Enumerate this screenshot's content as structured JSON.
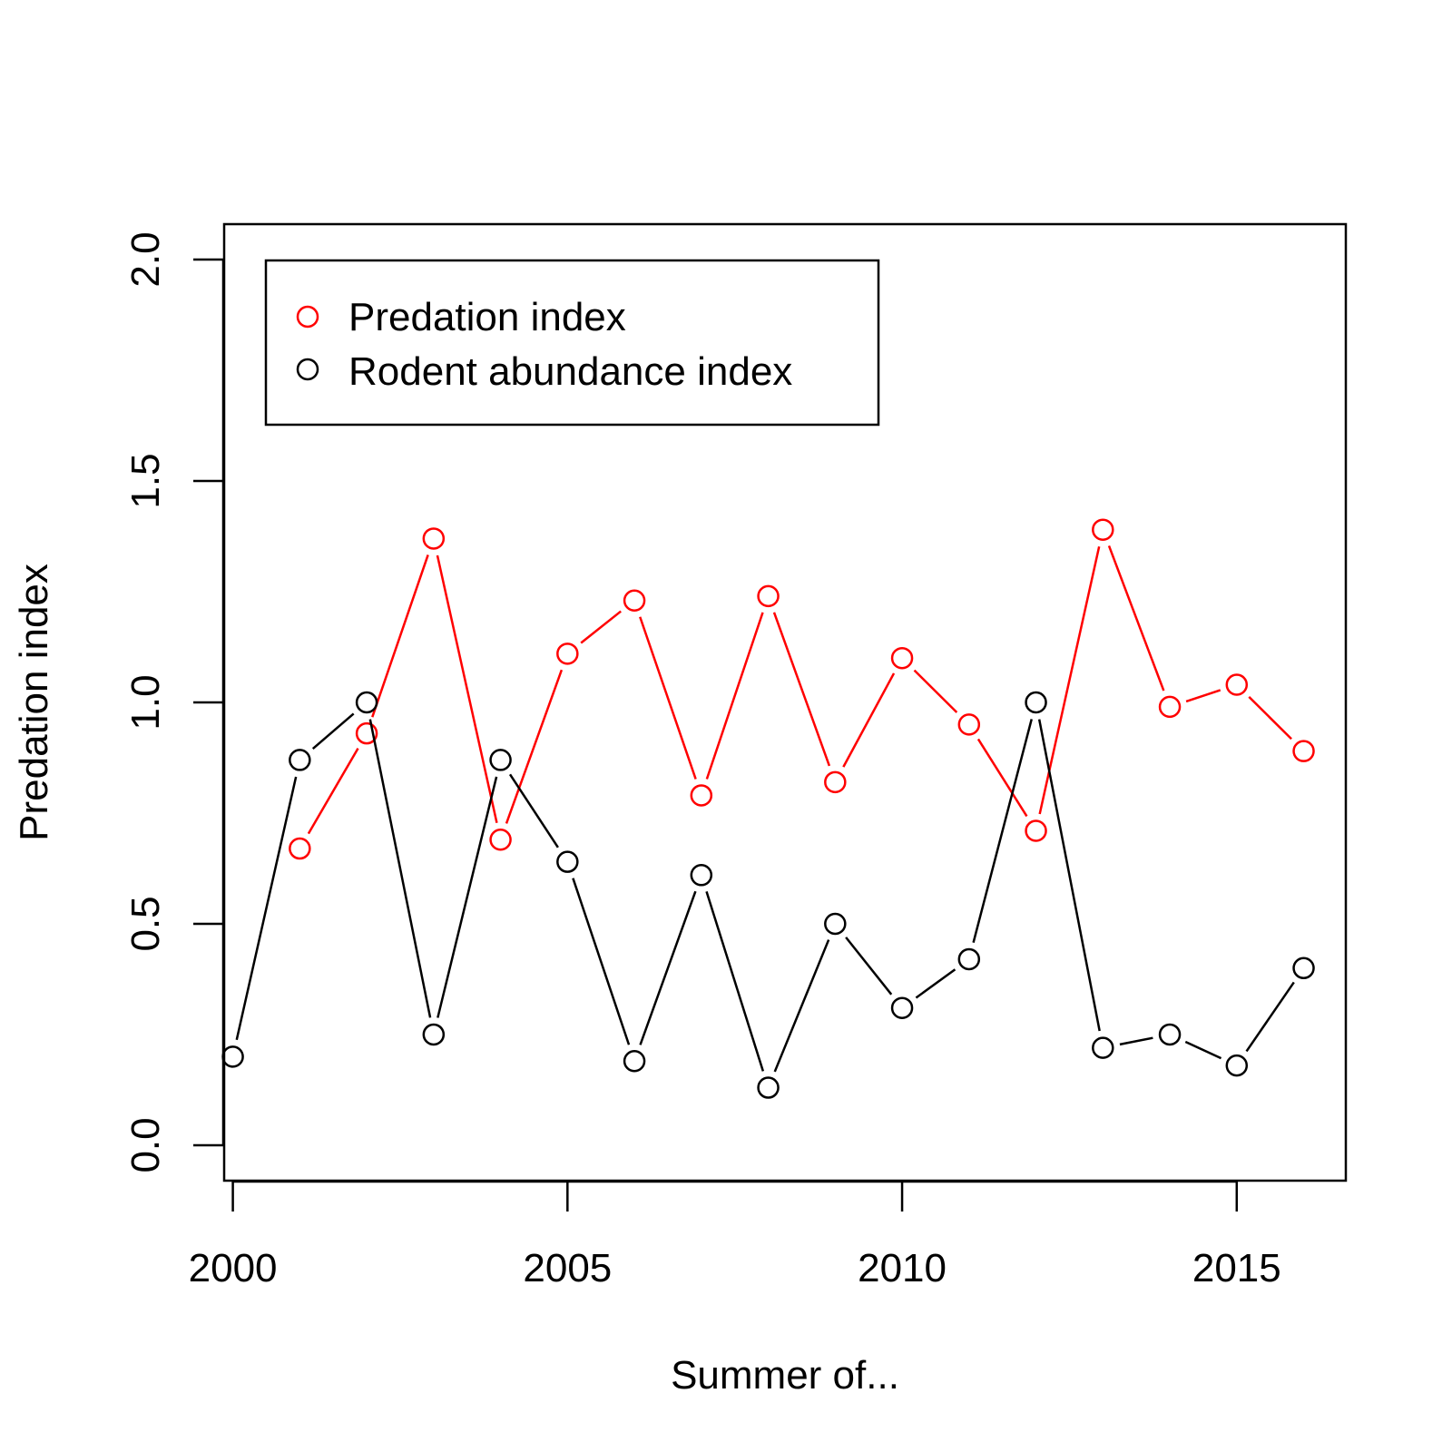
{
  "chart_data": {
    "type": "line",
    "title": "",
    "xlabel": "Summer of...",
    "ylabel": "Predation index",
    "x": [
      2000,
      2001,
      2002,
      2003,
      2004,
      2005,
      2006,
      2007,
      2008,
      2009,
      2010,
      2011,
      2012,
      2013,
      2014,
      2015,
      2016
    ],
    "xlim": [
      1999.87,
      2016.63
    ],
    "ylim": [
      -0.08,
      2.08
    ],
    "xticks": [
      2000,
      2005,
      2010,
      2015
    ],
    "xtick_labels": [
      "2000",
      "2005",
      "2010",
      "2015"
    ],
    "yticks": [
      0.0,
      0.5,
      1.0,
      1.5,
      2.0
    ],
    "ytick_labels": [
      "0.0",
      "0.5",
      "1.0",
      "1.5",
      "2.0"
    ],
    "grid": false,
    "legend_position": "top-left",
    "series": [
      {
        "name": "Predation index",
        "color": "#ff0000",
        "values": [
          null,
          0.67,
          0.93,
          1.37,
          0.69,
          1.11,
          1.23,
          0.79,
          1.24,
          0.82,
          1.1,
          0.95,
          0.71,
          1.39,
          0.99,
          1.04,
          0.89
        ]
      },
      {
        "name": "Rodent abundance index",
        "color": "#000000",
        "values": [
          0.2,
          0.87,
          1.0,
          0.25,
          0.87,
          0.64,
          0.19,
          0.61,
          0.13,
          0.5,
          0.31,
          0.42,
          1.0,
          0.22,
          0.25,
          0.18,
          0.4
        ]
      }
    ]
  }
}
